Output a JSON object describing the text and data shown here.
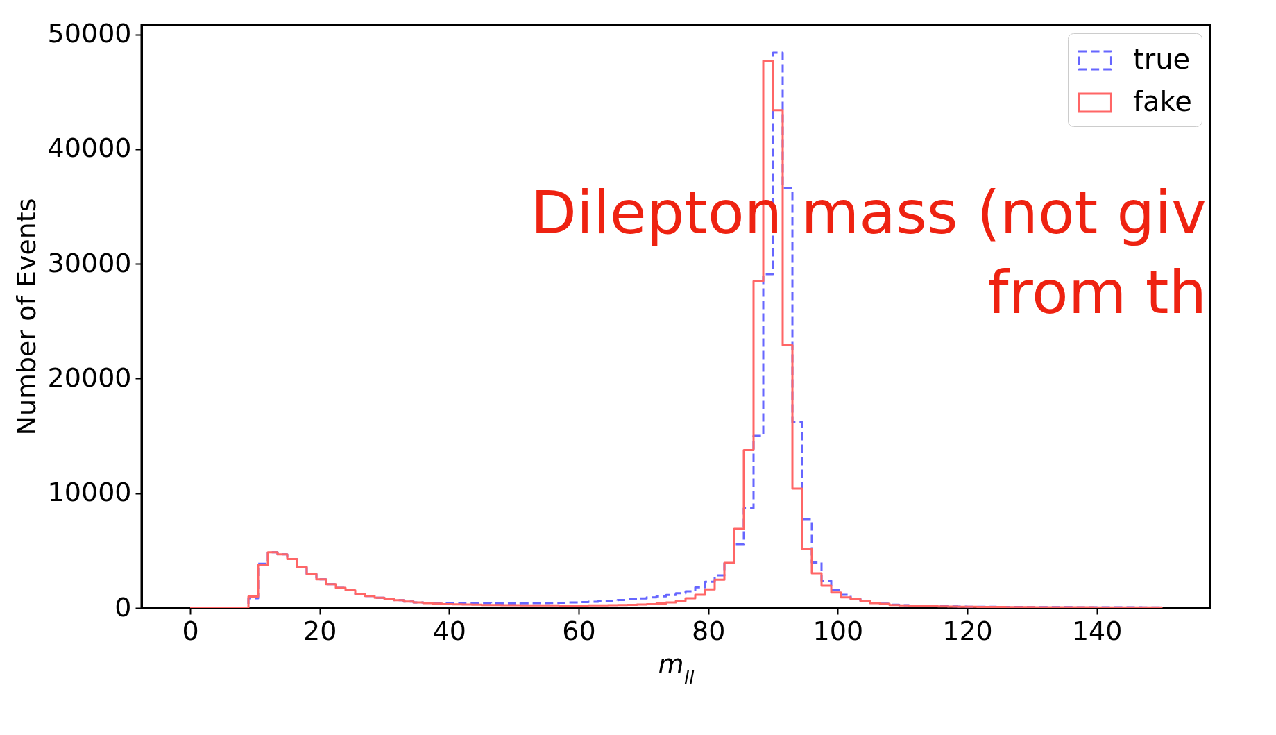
{
  "chart_data": {
    "type": "histogram",
    "xlabel": "m$_{ll}$",
    "ylabel": "Number of Events",
    "annotations": [
      "Dilepton mass (not giv",
      "from th"
    ],
    "bins": [
      0,
      1.5,
      3,
      4.5,
      6,
      7.5,
      9,
      10.5,
      12,
      13.5,
      15,
      16.5,
      18,
      19.5,
      21,
      22.5,
      24,
      25.5,
      27,
      28.5,
      30,
      31.5,
      33,
      34.5,
      36,
      37.5,
      39,
      40.5,
      42,
      43.5,
      45,
      46.5,
      48,
      49.5,
      51,
      52.5,
      54,
      55.5,
      57,
      58.5,
      60,
      61.5,
      63,
      64.5,
      66,
      67.5,
      69,
      70.5,
      72,
      73.5,
      75,
      76.5,
      78,
      79.5,
      81,
      82.5,
      84,
      85.5,
      87,
      88.5,
      90,
      91.5,
      93,
      94.5,
      96,
      97.5,
      99,
      100.5,
      102,
      103.5,
      105,
      106.5,
      108,
      109.5,
      111,
      112.5,
      114,
      115.5,
      117,
      118.5,
      120,
      121.5,
      123,
      124.5,
      126,
      127.5,
      129,
      130.5,
      132,
      133.5,
      135,
      136.5,
      138,
      139.5,
      141,
      142.5,
      144,
      145.5,
      147,
      148.5,
      150
    ],
    "series": [
      {
        "name": "true",
        "color": "#6666ff",
        "line_style": "dashed",
        "values": [
          0,
          0,
          0,
          0,
          0,
          0,
          850,
          3860,
          4860,
          4670,
          4270,
          3600,
          2970,
          2490,
          2070,
          1750,
          1540,
          1220,
          1040,
          890,
          790,
          680,
          560,
          490,
          450,
          440,
          430,
          430,
          420,
          410,
          410,
          400,
          400,
          400,
          410,
          420,
          430,
          440,
          460,
          480,
          510,
          550,
          590,
          640,
          700,
          760,
          830,
          920,
          1020,
          1140,
          1280,
          1450,
          1800,
          2280,
          2840,
          3900,
          5570,
          8680,
          15000,
          29100,
          48400,
          36600,
          16200,
          7740,
          3970,
          2370,
          1560,
          1150,
          800,
          640,
          450,
          380,
          280,
          240,
          200,
          180,
          160,
          145,
          130,
          120,
          110,
          105,
          100,
          95,
          90,
          85,
          80,
          78,
          75,
          72,
          70,
          68,
          65,
          62,
          60,
          58,
          56,
          54,
          52,
          50
        ]
      },
      {
        "name": "fake",
        "color": "#ff6666",
        "line_style": "solid",
        "values": [
          0,
          0,
          0,
          0,
          0,
          0,
          1000,
          3730,
          4860,
          4670,
          4270,
          3600,
          2970,
          2490,
          2070,
          1750,
          1540,
          1220,
          1040,
          890,
          790,
          680,
          560,
          490,
          430,
          380,
          340,
          320,
          300,
          280,
          260,
          250,
          240,
          235,
          230,
          225,
          220,
          220,
          215,
          215,
          215,
          220,
          225,
          235,
          250,
          270,
          300,
          340,
          400,
          480,
          600,
          850,
          1150,
          1620,
          2470,
          3940,
          6900,
          13770,
          28500,
          47700,
          43400,
          22900,
          10400,
          5140,
          3030,
          1940,
          1340,
          920,
          770,
          620,
          430,
          360,
          260,
          220,
          190,
          170,
          150,
          135,
          120,
          110,
          100,
          95,
          90,
          85,
          80,
          75,
          70,
          68,
          65,
          62,
          60,
          58,
          55,
          52,
          50,
          48,
          46,
          44,
          42,
          40
        ]
      }
    ],
    "xlim": [
      -7.5,
      157.5
    ],
    "xticks": [
      0,
      20,
      40,
      60,
      80,
      100,
      120,
      140
    ],
    "ylim": [
      0,
      50820
    ],
    "yticks": [
      0,
      10000,
      20000,
      30000,
      40000,
      50000
    ],
    "legend": "top right"
  }
}
